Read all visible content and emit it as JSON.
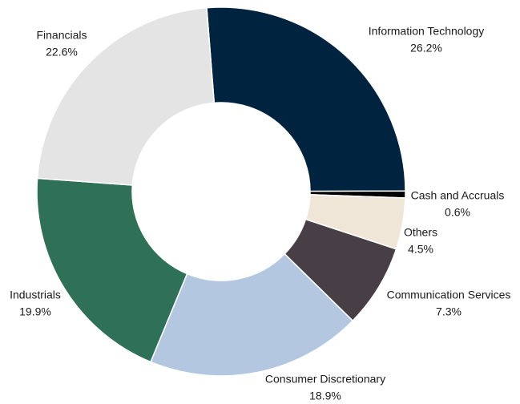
{
  "chart_data": {
    "type": "donut",
    "categories": [
      "Information Technology",
      "Cash and Accruals",
      "Others",
      "Communication Services",
      "Consumer Discretionary",
      "Industrials",
      "Financials"
    ],
    "values": [
      26.2,
      0.6,
      4.5,
      7.3,
      18.9,
      19.9,
      22.6
    ],
    "value_labels": [
      "26.2%",
      "0.6%",
      "4.5%",
      "7.3%",
      "18.9%",
      "19.9%",
      "22.6%"
    ],
    "colors": [
      "#00233f",
      "#000000",
      "#f0e6d8",
      "#483e45",
      "#b3c7e0",
      "#2e7058",
      "#e4e4e4"
    ]
  }
}
